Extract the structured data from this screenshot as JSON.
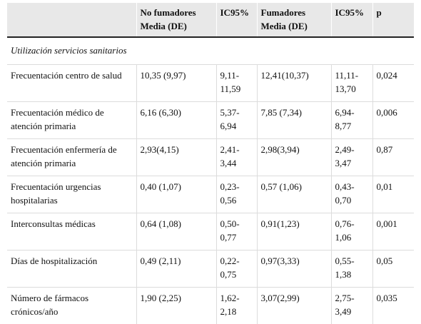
{
  "table": {
    "headers": [
      [
        "",
        ""
      ],
      [
        "No fumadores",
        "Media (DE)"
      ],
      [
        "IC95%",
        ""
      ],
      [
        "Fumadores",
        "Media (DE)"
      ],
      [
        "IC95%",
        ""
      ],
      [
        "p",
        ""
      ]
    ],
    "section_title": "Utilización servicios sanitarios",
    "rows": [
      {
        "label": " Frecuentación centro de salud",
        "no_fum_media": "10,35 (9,97)",
        "ic95_no_fum": "9,11-11,59",
        "fum_media": "12,41(10,37)",
        "ic95_fum": "11,11-13,70",
        "p": "0,024"
      },
      {
        "label": " Frecuentación médico de atención primaria",
        "no_fum_media": "6,16 (6,30)",
        "ic95_no_fum": "5,37-6,94",
        "fum_media": "7,85 (7,34)",
        "ic95_fum": "6,94-8,77",
        "p": "0,006"
      },
      {
        "label": " Frecuentación enfermería de atención primaria",
        "no_fum_media": "2,93(4,15)",
        "ic95_no_fum": "2,41-3,44",
        "fum_media": "2,98(3,94)",
        "ic95_fum": "2,49-3,47",
        "p": "0,87"
      },
      {
        "label": " Frecuentación urgencias hospitalarias",
        "no_fum_media": "0,40 (1,07)",
        "ic95_no_fum": "0,23-0,56",
        "fum_media": "0,57 (1,06)",
        "ic95_fum": "0,43-0,70",
        "p": "0,01"
      },
      {
        "label": " Interconsultas médicas",
        "no_fum_media": "0,64 (1,08)",
        "ic95_no_fum": "0,50-0,77",
        "fum_media": "0,91(1,23)",
        "ic95_fum": "0,76-1,06",
        "p": "0,001"
      },
      {
        "label": " Días de hospitalización",
        "no_fum_media": "0,49 (2,11)",
        "ic95_no_fum": "0,22-0,75",
        "fum_media": "0,97(3,33)",
        "ic95_fum": "0,55-1,38",
        "p": "0,05"
      },
      {
        "label": " Número de fármacos crónicos/año",
        "no_fum_media": "1,90 (2,25)",
        "ic95_no_fum": "1,62-2,18",
        "fum_media": "3,07(2,99)",
        "ic95_fum": "2,75-3,49",
        "p": "0,035"
      }
    ]
  }
}
